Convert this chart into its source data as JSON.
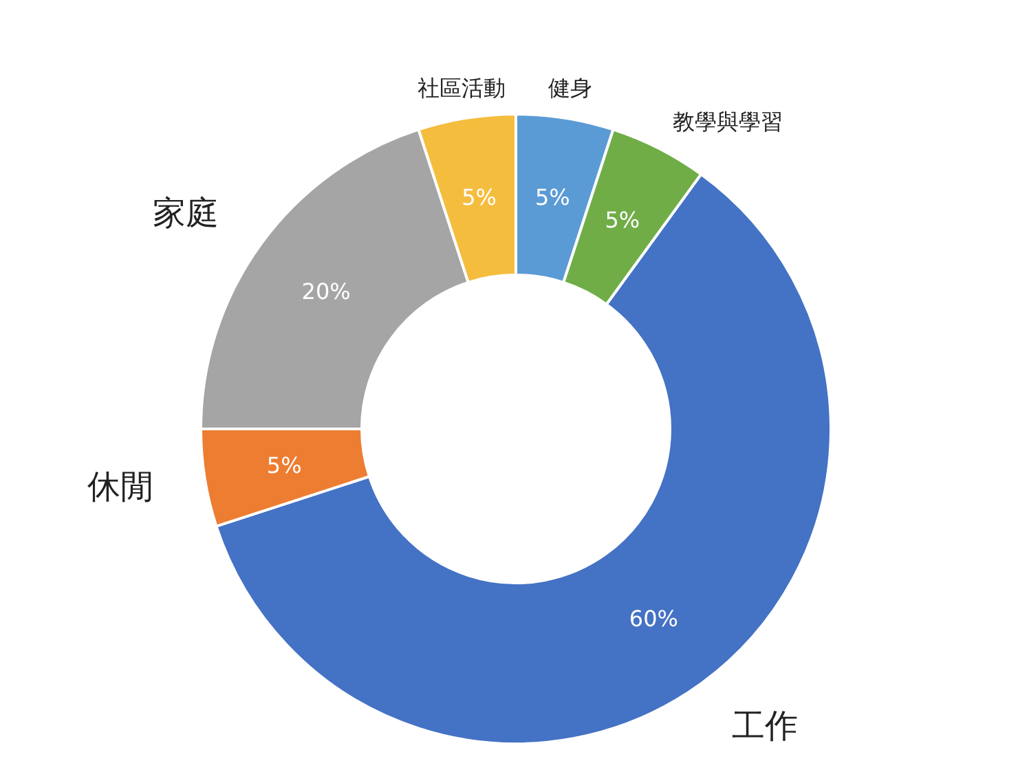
{
  "chart_data": {
    "type": "donut",
    "categories": [
      "工作",
      "休閒",
      "家庭",
      "社區活動",
      "健身",
      "教學與學習"
    ],
    "values": [
      60,
      5,
      20,
      5,
      5,
      5
    ],
    "colors": [
      "#4472c4",
      "#ed7d31",
      "#a5a5a5",
      "#f5bd3e",
      "#5b9bd5",
      "#70ad47"
    ],
    "value_labels": [
      "60%",
      "5%",
      "20%",
      "5%",
      "5%",
      "5%"
    ],
    "legend": false
  }
}
